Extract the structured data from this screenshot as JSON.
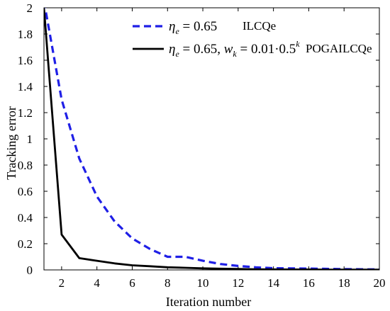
{
  "chart_data": {
    "type": "line",
    "xlabel": "Iteration number",
    "ylabel": "Tracking error",
    "xlim": [
      1,
      20
    ],
    "ylim": [
      0,
      2
    ],
    "xticks": [
      2,
      4,
      6,
      8,
      10,
      12,
      14,
      16,
      18,
      20
    ],
    "yticks": [
      0,
      0.2,
      0.4,
      0.6,
      0.8,
      1,
      1.2,
      1.4,
      1.6,
      1.8,
      2
    ],
    "xtick_labels": [
      "2",
      "4",
      "6",
      "8",
      "10",
      "12",
      "14",
      "16",
      "18",
      "20"
    ],
    "ytick_labels": [
      "0",
      "0.2",
      "0.4",
      "0.6",
      "0.8",
      "1",
      "1.2",
      "1.4",
      "1.6",
      "1.8",
      "2"
    ],
    "grid": false,
    "legend_position": "top-right",
    "series": [
      {
        "name": "ILCQe",
        "legend_math": {
          "symbol": "η",
          "sub": "e",
          "rest": " = 0.65"
        },
        "color": "#1f1fe6",
        "style": "dashed",
        "x": [
          1,
          2,
          3,
          4,
          5,
          6,
          7,
          8,
          9,
          10,
          11,
          12,
          13,
          14,
          15,
          16,
          17,
          18,
          19,
          20
        ],
        "values": [
          2.05,
          1.3,
          0.85,
          0.56,
          0.37,
          0.24,
          0.16,
          0.1,
          0.1,
          0.07,
          0.045,
          0.03,
          0.02,
          0.013,
          0.012,
          0.01,
          0.008,
          0.006,
          0.005,
          0.004
        ]
      },
      {
        "name": "POGAILCQe",
        "legend_math": {
          "symbol": "η",
          "sub": "e",
          "rest": " = 0.65, ",
          "w": "w",
          "wsub": "k",
          "wrest": " = 0.01·0.5",
          "sup": "k"
        },
        "color": "#000000",
        "style": "solid",
        "x": [
          1,
          2,
          3,
          4,
          5,
          6,
          7,
          8,
          9,
          10,
          11,
          12,
          13,
          14,
          15,
          16,
          17,
          18,
          19,
          20
        ],
        "values": [
          2.0,
          0.27,
          0.09,
          0.07,
          0.05,
          0.035,
          0.028,
          0.02,
          0.016,
          0.012,
          0.009,
          0.007,
          0.005,
          0.004,
          0.003,
          0.003,
          0.002,
          0.002,
          0.002,
          0.002
        ]
      }
    ]
  }
}
